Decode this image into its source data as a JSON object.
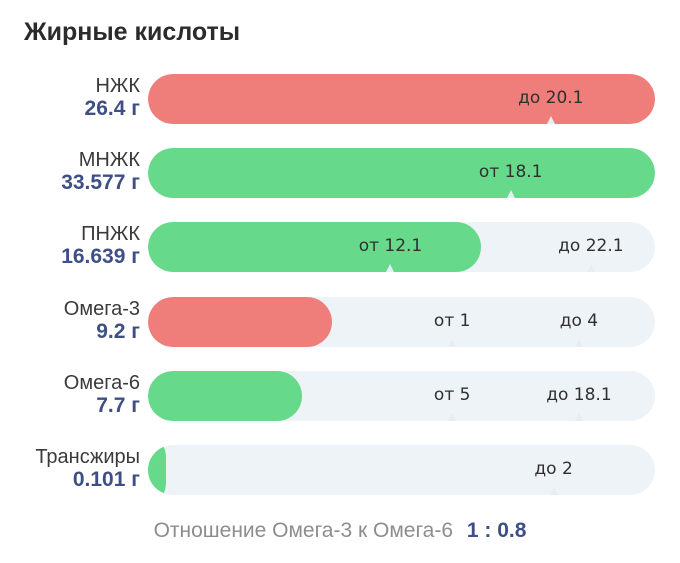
{
  "title": "Жирные кислоты",
  "chart_data": {
    "type": "bar",
    "orientation": "horizontal",
    "title": "Жирные кислоты",
    "scale_max": 25.3,
    "colors": {
      "over": "#ef7e7b",
      "ok": "#67d98a",
      "track": "#eef3f7"
    },
    "rows": [
      {
        "name": "НЖК",
        "value_label": "26.4 г",
        "value": 26.4,
        "status": "over",
        "marks": [
          {
            "label": "до 20.1",
            "value": 20.1
          }
        ]
      },
      {
        "name": "МНЖК",
        "value_label": "33.577 г",
        "value": 33.577,
        "status": "ok",
        "marks": [
          {
            "label": "от 18.1",
            "value": 18.1
          }
        ]
      },
      {
        "name": "ПНЖК",
        "value_label": "16.639 г",
        "value": 16.639,
        "status": "ok",
        "marks": [
          {
            "label": "от 12.1",
            "value": 12.1
          },
          {
            "label": "до 22.1",
            "value": 22.1
          }
        ]
      },
      {
        "name": "Омега-3",
        "value_label": "9.2 г",
        "value": 9.2,
        "status": "over",
        "marks": [
          {
            "label": "от 1",
            "value": 1
          },
          {
            "label": "до 4",
            "value": 4
          }
        ],
        "mark_positions": [
          0.6,
          0.85
        ]
      },
      {
        "name": "Омега-6",
        "value_label": "7.7 г",
        "value": 7.7,
        "status": "ok",
        "marks": [
          {
            "label": "от 5",
            "value": 5
          },
          {
            "label": "до 18.1",
            "value": 18.1
          }
        ],
        "mark_positions": [
          0.6,
          0.85
        ]
      },
      {
        "name": "Трансжиры",
        "value_label": "0.101 г",
        "value": 0.101,
        "status": "ok",
        "marks": [
          {
            "label": "до 2",
            "value": 2
          }
        ],
        "mark_positions": [
          0.8
        ]
      }
    ]
  },
  "ratio": {
    "label": "Отношение Омега-3 к Омега-6",
    "value": "1 : 0.8"
  }
}
